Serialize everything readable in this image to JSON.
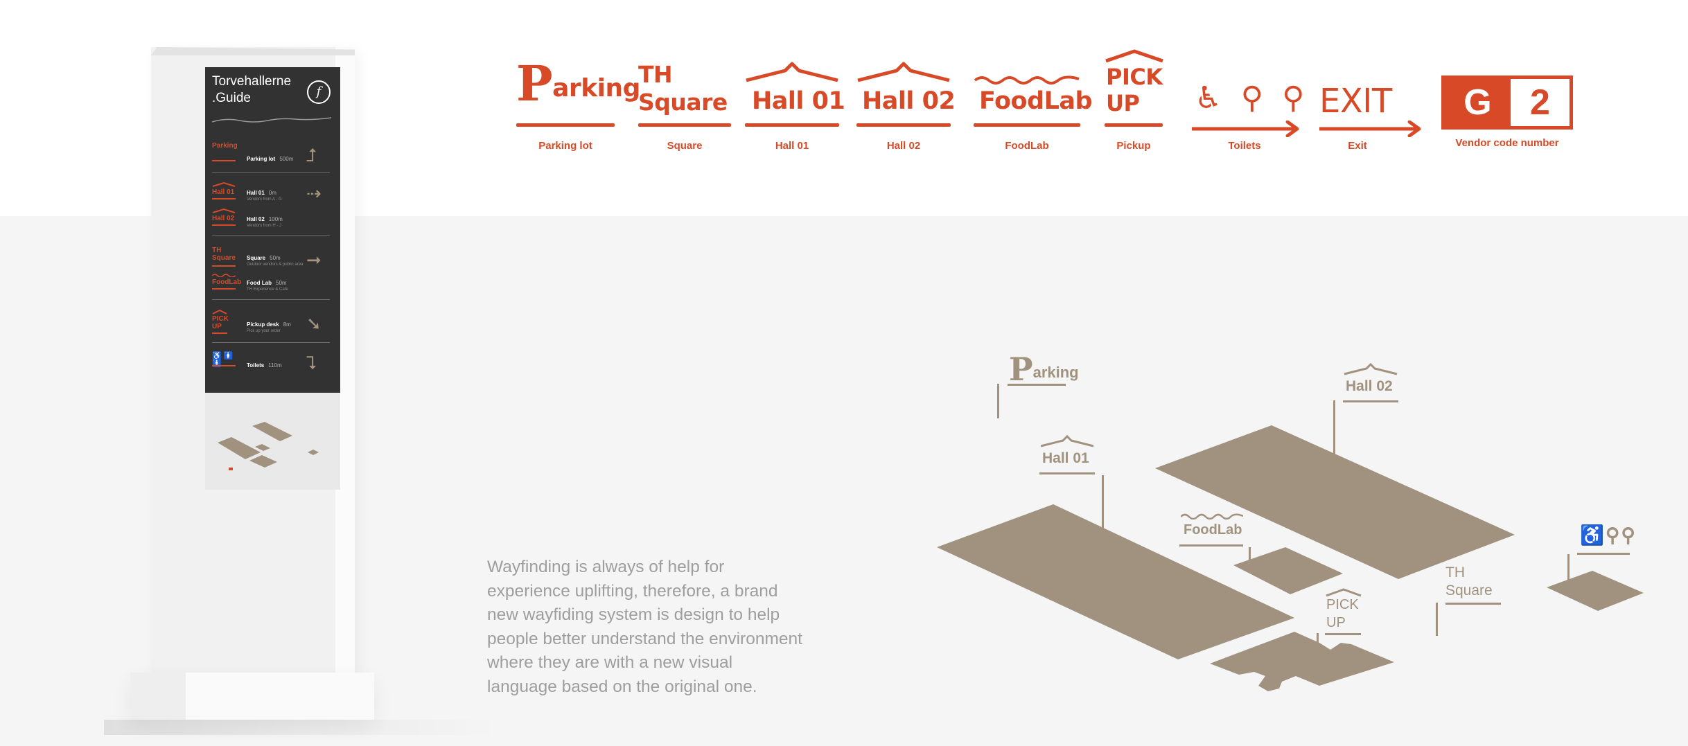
{
  "kiosk": {
    "title_line1": "Torvehallerne",
    "title_line2": ".Guide",
    "logo_glyph": "f",
    "rows": [
      {
        "sign": "Parking",
        "name": "Parking lot",
        "dist": "500m",
        "sub": ""
      },
      {
        "sign": "Hall 01",
        "name": "Hall 01",
        "dist": "0m",
        "sub": "Vendors from A - G"
      },
      {
        "sign": "Hall 02",
        "name": "Hall 02",
        "dist": "100m",
        "sub": "Vendors from H - J"
      },
      {
        "sign": "TH Square",
        "name": "Square",
        "dist": "50m",
        "sub": "Outdoor vendors & public area"
      },
      {
        "sign": "FoodLab",
        "name": "Food Lab",
        "dist": "50m",
        "sub": "TH Experience & Cafe"
      },
      {
        "sign": "PICK UP",
        "name": "Pickup desk",
        "dist": "8m",
        "sub": "Pick up your order"
      },
      {
        "sign": "♿ 🚺 🚹",
        "name": "Toilets",
        "dist": "110m",
        "sub": ""
      }
    ]
  },
  "signs": [
    {
      "label": "Parking",
      "caption": "Parking lot"
    },
    {
      "label_line1": "TH",
      "label_line2": "Square",
      "caption": "Square"
    },
    {
      "label": "Hall 01",
      "caption": "Hall 01"
    },
    {
      "label": "Hall 02",
      "caption": "Hall 02"
    },
    {
      "label": "FoodLab",
      "caption": "FoodLab"
    },
    {
      "label_line1": "PICK",
      "label_line2": "UP",
      "caption": "Pickup"
    },
    {
      "label": "♿ ⚲ ⚲",
      "caption": "Toilets"
    },
    {
      "label": "EXIT",
      "caption": "Exit"
    },
    {
      "label_left": "G",
      "label_right": "2",
      "caption": "Vendor code number"
    }
  ],
  "description": "Wayfinding is always of help for experience uplifting, therefore, a brand new wayfiding system is design to help people better understand the environment where they are with a new visual language based on the original one.",
  "map": {
    "labels": {
      "parking": "Parking",
      "hall01": "Hall 01",
      "hall02": "Hall 02",
      "foodlab": "FoodLab",
      "square_line1": "TH",
      "square_line2": "Square",
      "pickup_line1": "PICK",
      "pickup_line2": "UP",
      "toilets": "♿⚲⚲"
    }
  },
  "colors": {
    "accent": "#d84a27",
    "map_fill": "#a0927f",
    "panel": "#323232"
  }
}
